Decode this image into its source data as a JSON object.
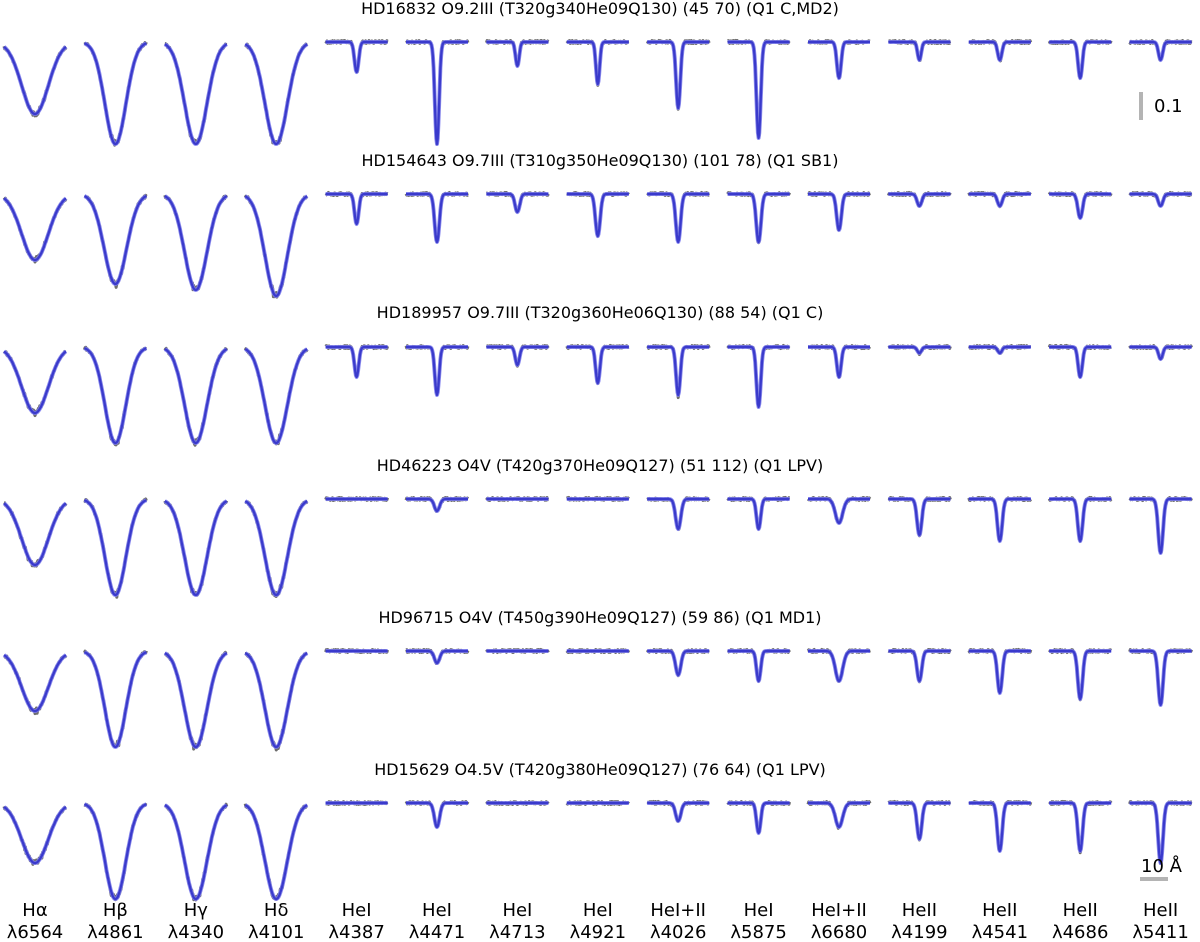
{
  "colors": {
    "observed": "#6e6e6e",
    "fit_strong": "#3a3acc",
    "fit_light": "#7c7cf0",
    "scale_bar": "#b4b4b4"
  },
  "scale_bars": {
    "depth_label": "0.1",
    "wavelength_label": "10 Å"
  },
  "chart_data": {
    "type": "line",
    "title": "",
    "xlabel": "",
    "ylabel": "",
    "grid": false,
    "legend": "none",
    "lines": [
      {
        "name": "Hα",
        "wavelength": "λ6564"
      },
      {
        "name": "Hβ",
        "wavelength": "λ4861"
      },
      {
        "name": "Hγ",
        "wavelength": "λ4340"
      },
      {
        "name": "Hδ",
        "wavelength": "λ4101"
      },
      {
        "name": "HeI",
        "wavelength": "λ4387"
      },
      {
        "name": "HeI",
        "wavelength": "λ4471"
      },
      {
        "name": "HeI",
        "wavelength": "λ4713"
      },
      {
        "name": "HeI",
        "wavelength": "λ4921"
      },
      {
        "name": "HeI+II",
        "wavelength": "λ4026"
      },
      {
        "name": "HeI",
        "wavelength": "λ5875"
      },
      {
        "name": "HeI+II",
        "wavelength": "λ6680"
      },
      {
        "name": "HeII",
        "wavelength": "λ4199"
      },
      {
        "name": "HeII",
        "wavelength": "λ4541"
      },
      {
        "name": "HeII",
        "wavelength": "λ4686"
      },
      {
        "name": "HeII",
        "wavelength": "λ5411"
      }
    ],
    "stars": [
      {
        "title": "HD16832 O9.2III (T320g340He09Q130) (45 70) (Q1 C,MD2)",
        "depths": [
          0.12,
          0.17,
          0.17,
          0.17,
          0.05,
          0.17,
          0.04,
          0.07,
          0.11,
          0.16,
          0.06,
          0.03,
          0.03,
          0.06,
          0.03
        ],
        "widths": [
          1.9,
          1.5,
          1.6,
          1.6,
          0.8,
          0.8,
          0.7,
          0.7,
          0.8,
          0.8,
          0.8,
          0.7,
          0.8,
          0.8,
          0.8
        ]
      },
      {
        "title": "HD154643 O9.7III (T310g350He09Q130) (101 78) (Q1 SB1)",
        "depths": [
          0.11,
          0.15,
          0.16,
          0.17,
          0.05,
          0.08,
          0.03,
          0.07,
          0.08,
          0.08,
          0.06,
          0.02,
          0.02,
          0.04,
          0.02
        ],
        "widths": [
          1.9,
          1.6,
          1.6,
          1.6,
          0.8,
          0.9,
          0.9,
          0.9,
          0.9,
          0.9,
          0.9,
          0.9,
          0.9,
          0.9,
          0.9
        ]
      },
      {
        "title": "HD189957 O9.7III (T320g360He06Q130) (88 54) (Q1 C)",
        "depths": [
          0.11,
          0.16,
          0.16,
          0.16,
          0.05,
          0.08,
          0.03,
          0.06,
          0.08,
          0.1,
          0.05,
          0.01,
          0.01,
          0.05,
          0.02
        ],
        "widths": [
          1.9,
          1.5,
          1.6,
          1.6,
          0.8,
          0.8,
          0.8,
          0.8,
          0.8,
          0.8,
          0.8,
          0.8,
          0.8,
          0.8,
          0.8
        ]
      },
      {
        "title": "HD46223 O4V (T420g370He09Q127) (51 112) (Q1 LPV)",
        "depths": [
          0.11,
          0.16,
          0.16,
          0.16,
          0.0,
          0.02,
          0.0,
          0.0,
          0.05,
          0.05,
          0.04,
          0.06,
          0.07,
          0.07,
          0.09
        ],
        "widths": [
          1.9,
          1.5,
          1.6,
          1.6,
          0.8,
          1.0,
          0.8,
          0.8,
          1.0,
          0.8,
          1.4,
          0.9,
          0.9,
          0.9,
          0.9
        ]
      },
      {
        "title": "HD96715 O4V (T450g390He09Q127) (59 86) (Q1 MD1)",
        "depths": [
          0.1,
          0.16,
          0.16,
          0.16,
          0.0,
          0.02,
          0.0,
          0.0,
          0.04,
          0.05,
          0.05,
          0.05,
          0.07,
          0.08,
          0.09
        ],
        "widths": [
          1.9,
          1.5,
          1.6,
          1.6,
          0.8,
          1.0,
          0.8,
          0.8,
          1.0,
          0.8,
          1.4,
          0.9,
          0.9,
          0.9,
          0.9
        ]
      },
      {
        "title": "HD15629 O4.5V (T420g380He09Q127) (76 64) (Q1 LPV)",
        "depths": [
          0.1,
          0.16,
          0.16,
          0.16,
          0.0,
          0.04,
          0.0,
          0.0,
          0.03,
          0.05,
          0.04,
          0.06,
          0.08,
          0.08,
          0.1
        ],
        "widths": [
          1.9,
          1.5,
          1.6,
          1.6,
          0.8,
          1.0,
          0.8,
          0.8,
          1.0,
          0.8,
          1.4,
          0.9,
          0.9,
          0.9,
          0.9
        ]
      }
    ]
  }
}
